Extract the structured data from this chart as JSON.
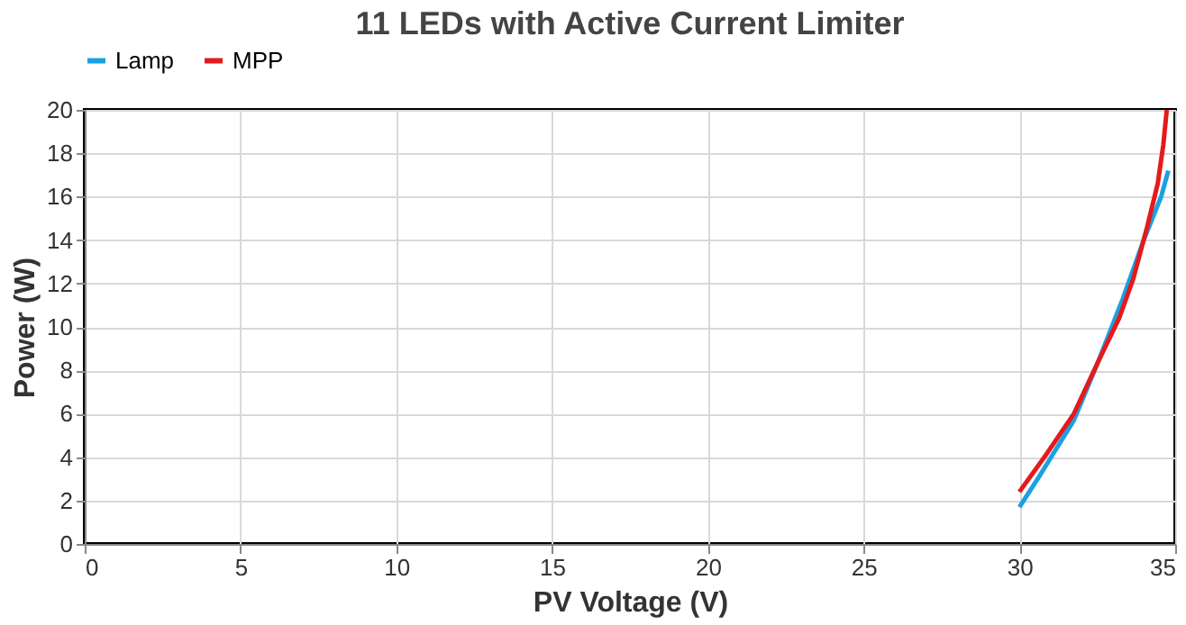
{
  "chart_data": {
    "type": "line",
    "title": "11 LEDs with Active Current Limiter",
    "xlabel": "PV Voltage (V)",
    "ylabel": "Power (W)",
    "xlim": [
      0,
      35
    ],
    "xticks": [
      0,
      5,
      10,
      15,
      20,
      25,
      30,
      35
    ],
    "ylim": [
      0,
      20
    ],
    "yticks": [
      0,
      2,
      4,
      6,
      8,
      10,
      12,
      14,
      16,
      18,
      20
    ],
    "grid": true,
    "legend": "top",
    "marker": "none",
    "line_style": "solid",
    "series": [
      {
        "name": "Lamp",
        "color": "#1ba1e2",
        "x": [
          30.0,
          30.63,
          31.75,
          32.53,
          33.32,
          33.99,
          34.55,
          34.78
        ],
        "values": [
          1.7,
          3.1,
          5.7,
          8.4,
          11.3,
          14.0,
          16.0,
          17.2
        ]
      },
      {
        "name": "MPP",
        "color": "#e41a1c",
        "x": [
          30.0,
          30.85,
          31.75,
          32.53,
          33.2,
          33.65,
          34.1,
          34.44,
          34.62,
          34.73
        ],
        "values": [
          2.4,
          4.1,
          6.0,
          8.4,
          10.4,
          12.2,
          14.6,
          16.6,
          18.4,
          20.0
        ]
      }
    ]
  }
}
